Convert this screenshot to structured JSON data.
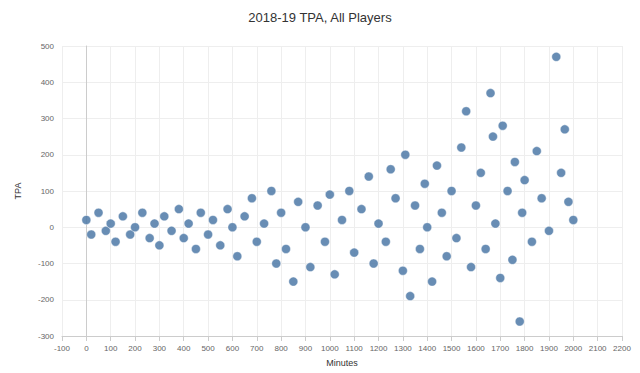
{
  "chart_data": {
    "type": "scatter",
    "title": "2018-19 TPA, All Players",
    "x_label": "Minutes",
    "y_label": "TPA",
    "x": [
      0,
      20,
      50,
      80,
      100,
      120,
      150,
      180,
      200,
      230,
      260,
      280,
      300,
      320,
      350,
      380,
      400,
      420,
      450,
      470,
      500,
      520,
      550,
      580,
      600,
      620,
      650,
      680,
      700,
      730,
      760,
      780,
      800,
      820,
      850,
      870,
      900,
      920,
      950,
      980,
      1000,
      1020,
      1050,
      1080,
      1100,
      1130,
      1160,
      1180,
      1200,
      1230,
      1250,
      1270,
      1300,
      1310,
      1330,
      1350,
      1370,
      1390,
      1400,
      1420,
      1440,
      1460,
      1480,
      1500,
      1520,
      1540,
      1560,
      1580,
      1600,
      1620,
      1640,
      1660,
      1670,
      1680,
      1700,
      1710,
      1730,
      1750,
      1760,
      1780,
      1790,
      1800,
      1830,
      1850,
      1870,
      1900,
      1930,
      1950,
      1965,
      1980,
      2000
    ],
    "values": [
      20,
      -20,
      40,
      -10,
      10,
      -40,
      30,
      -20,
      0,
      40,
      -30,
      10,
      -50,
      30,
      -10,
      50,
      -30,
      10,
      -60,
      40,
      -20,
      20,
      -50,
      50,
      0,
      -80,
      30,
      80,
      -40,
      10,
      100,
      -100,
      40,
      -60,
      -150,
      70,
      0,
      -110,
      60,
      -40,
      90,
      -130,
      20,
      100,
      -70,
      50,
      140,
      -100,
      10,
      -40,
      160,
      80,
      -120,
      200,
      -190,
      60,
      -60,
      120,
      0,
      -150,
      170,
      40,
      -80,
      100,
      -30,
      220,
      320,
      -110,
      60,
      150,
      -60,
      370,
      250,
      10,
      -140,
      280,
      100,
      -90,
      180,
      -260,
      40,
      130,
      -40,
      210,
      80,
      -10,
      470,
      150,
      270,
      70,
      20
    ],
    "color": "#4e79a7",
    "xlim": [
      -100,
      2200
    ],
    "xticks": [
      -100,
      0,
      100,
      200,
      300,
      400,
      500,
      600,
      700,
      800,
      900,
      1000,
      1100,
      1200,
      1300,
      1400,
      1500,
      1600,
      1700,
      1800,
      1900,
      2000,
      2100,
      2200
    ],
    "ylim": [
      -300,
      500
    ],
    "yticks": [
      -300,
      -200,
      -100,
      0,
      100,
      200,
      300,
      400,
      500
    ],
    "grid": true,
    "marker": "circle"
  }
}
